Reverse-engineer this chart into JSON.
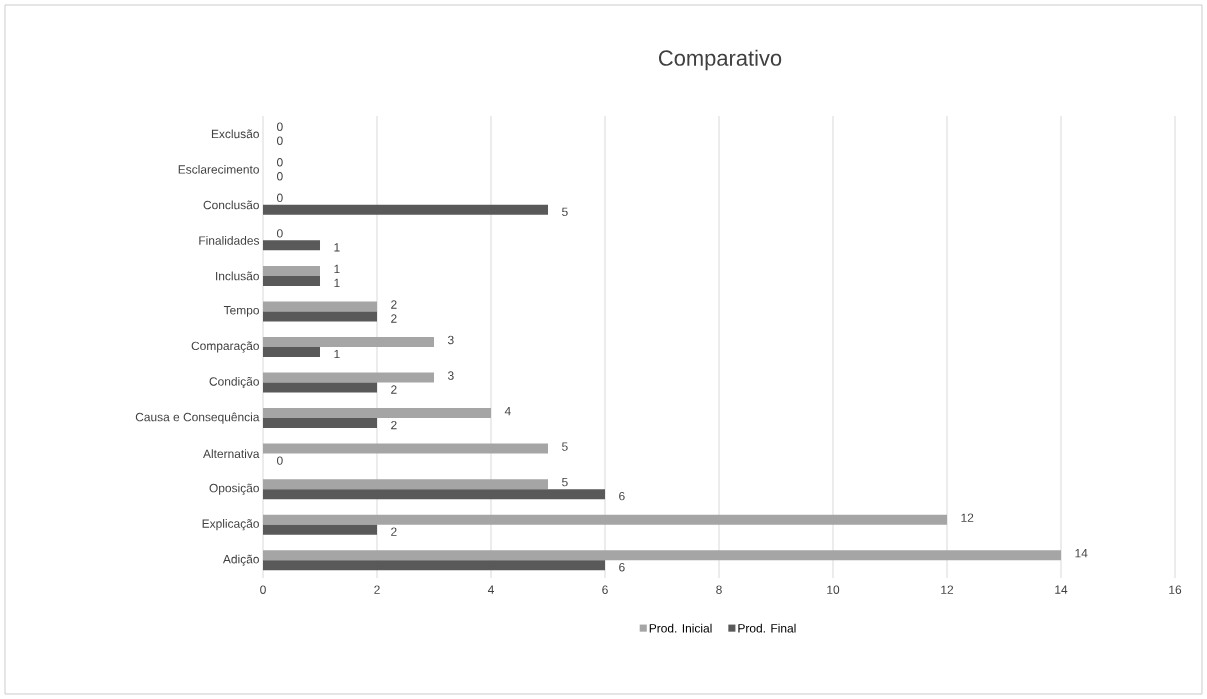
{
  "chart_data": {
    "type": "bar",
    "orientation": "horizontal",
    "title": "Comparativo",
    "categories": [
      "Exclusão",
      "Esclarecimento",
      "Conclusão",
      "Finalidades",
      "Inclusão",
      "Tempo",
      "Comparação",
      "Condição",
      "Causa e Consequência",
      "Alternativa",
      "Oposição",
      "Explicação",
      "Adição"
    ],
    "series": [
      {
        "name": "Prod. Inicial",
        "color": "#a5a5a5",
        "values": [
          0,
          0,
          0,
          0,
          1,
          2,
          3,
          3,
          4,
          5,
          5,
          12,
          14
        ]
      },
      {
        "name": "Prod. Final",
        "color": "#595959",
        "values": [
          0,
          0,
          5,
          1,
          1,
          2,
          1,
          2,
          2,
          0,
          6,
          2,
          6
        ]
      }
    ],
    "xlim": [
      0,
      16
    ],
    "xticks": [
      0,
      2,
      4,
      6,
      8,
      10,
      12,
      14,
      16
    ],
    "grid": "x",
    "legend": "bottom",
    "data_labels": true
  }
}
